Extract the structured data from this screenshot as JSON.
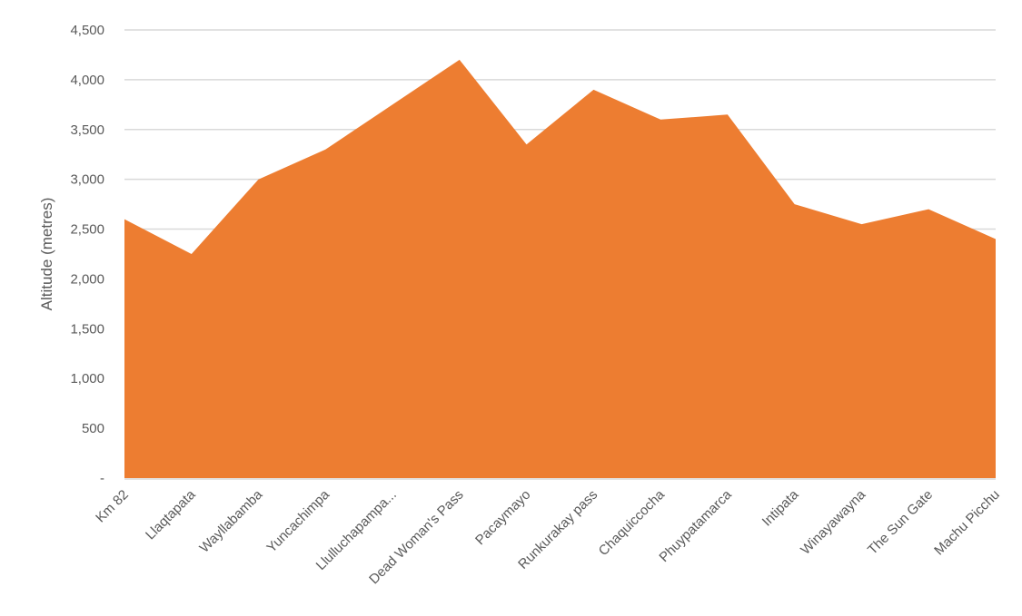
{
  "chart_data": {
    "type": "area",
    "title": "",
    "xlabel": "",
    "ylabel": "Altitude (metres)",
    "ylim": [
      0,
      4500
    ],
    "yticks": [
      0,
      500,
      1000,
      1500,
      2000,
      2500,
      3000,
      3500,
      4000,
      4500
    ],
    "ytick_labels": [
      "-",
      "500",
      "1,000",
      "1,500",
      "2,000",
      "2,500",
      "3,000",
      "3,500",
      "4,000",
      "4,500"
    ],
    "grid": true,
    "legend": "none",
    "fill_color": "#ED7D31",
    "categories": [
      "Km 82",
      "Llaqtapata",
      "Wayllabamba",
      "Yuncachimpa",
      "Llulluchapampa...",
      "Dead Woman's Pass",
      "Pacaymayo",
      "Runkurakay pass",
      "Chaquiccocha",
      "Phuypatamarca",
      "Intipata",
      "Winayawayna",
      "The Sun Gate",
      "Machu Picchu"
    ],
    "series": [
      {
        "name": "Altitude",
        "values": [
          2600,
          2250,
          3000,
          3300,
          3750,
          4200,
          3350,
          3900,
          3600,
          3650,
          2750,
          2550,
          2700,
          2400
        ]
      }
    ]
  }
}
